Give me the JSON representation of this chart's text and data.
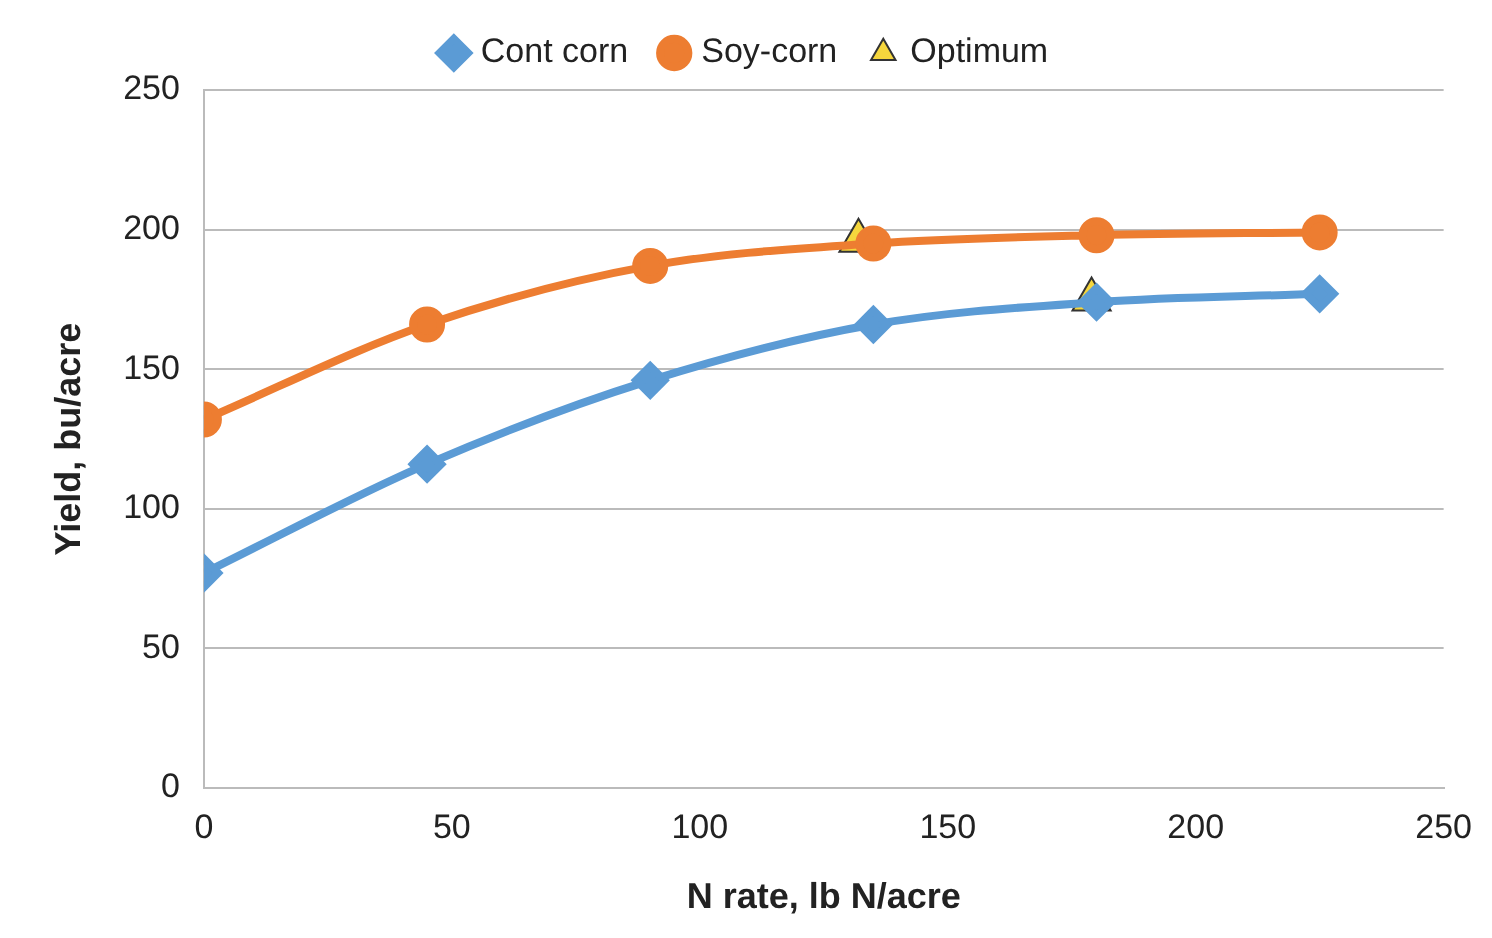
{
  "chart_data": {
    "type": "line",
    "xlabel": "N rate, lb N/acre",
    "ylabel": "Yield, bu/acre",
    "xlim": [
      0,
      250
    ],
    "xticks": [
      0,
      50,
      100,
      150,
      200,
      250
    ],
    "ylim": [
      0,
      250
    ],
    "yticks": [
      0,
      50,
      100,
      150,
      200,
      250
    ],
    "grid": "y",
    "legend": "top",
    "series": [
      {
        "name": "Cont corn",
        "color": "#5b9bd5",
        "marker": "diamond",
        "x": [
          0,
          45,
          90,
          135,
          180,
          225
        ],
        "values": [
          77,
          116,
          146,
          166,
          174,
          177
        ]
      },
      {
        "name": "Soy-corn",
        "color": "#ed7d31",
        "marker": "circle",
        "x": [
          0,
          45,
          90,
          135,
          180,
          225
        ],
        "values": [
          132,
          166,
          187,
          195,
          198,
          199
        ]
      },
      {
        "name": "Optimum",
        "type": "scatter",
        "color": "#f5d63d",
        "marker": "triangle",
        "x": [
          132,
          179
        ],
        "values": [
          196,
          175
        ]
      }
    ]
  }
}
